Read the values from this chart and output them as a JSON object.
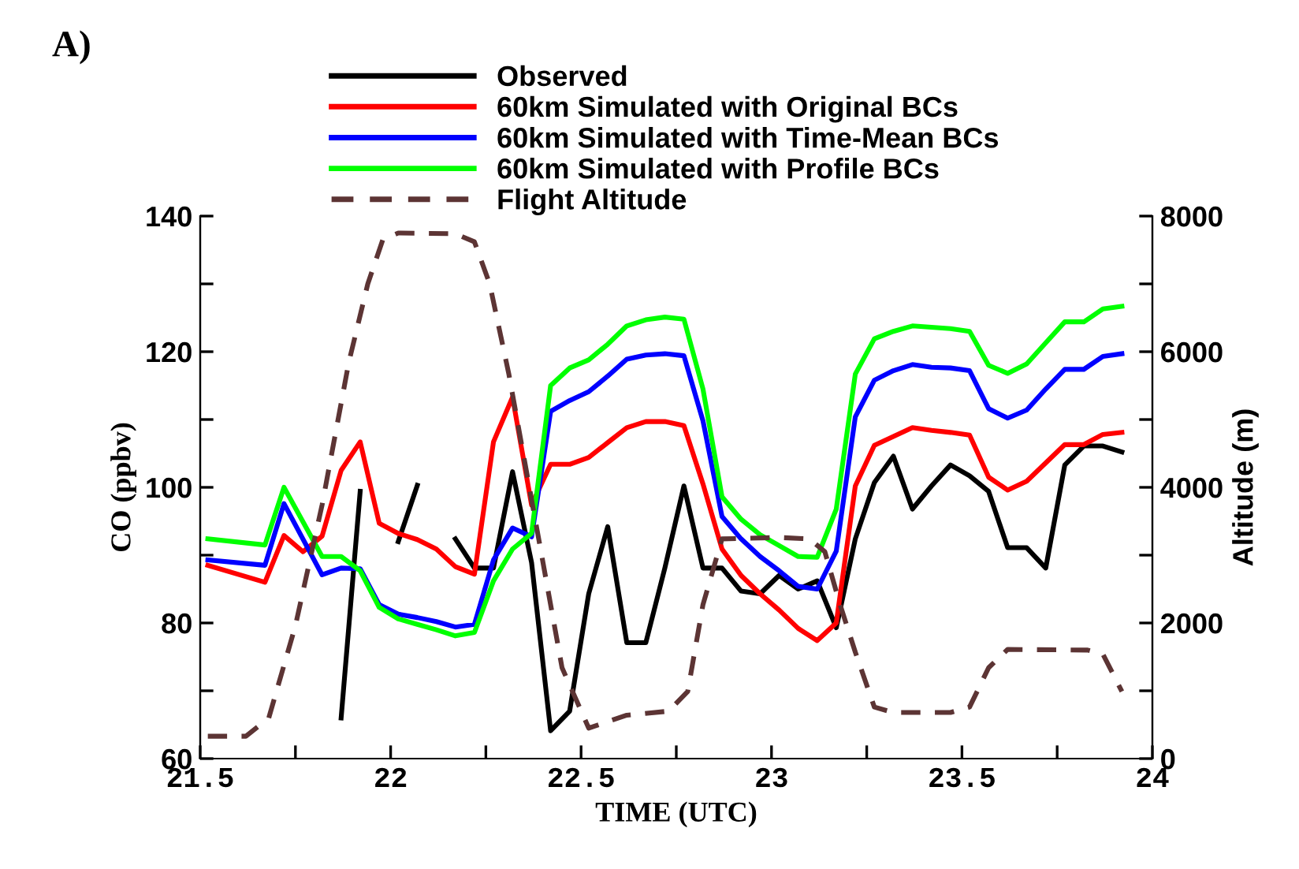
{
  "chart_data": {
    "type": "line",
    "xlabel": "TIME (UTC)",
    "ylabel": "CO (ppbv)",
    "y2label": "Altitude (m)",
    "annotations": [
      "A)"
    ],
    "xlim": [
      21.5,
      24
    ],
    "xticks": [
      21.5,
      {
        "value": 21.75,
        "label": null
      },
      22,
      {
        "value": 22.25,
        "label": null
      },
      22.5,
      {
        "value": 22.75,
        "label": null
      },
      23,
      {
        "value": 23.25,
        "label": null
      },
      23.5,
      {
        "value": 23.75,
        "label": null
      },
      24
    ],
    "ylim": [
      60,
      140
    ],
    "yticks": [
      60,
      {
        "value": 70,
        "label": null
      },
      80,
      {
        "value": 90,
        "label": null
      },
      100,
      {
        "value": 110,
        "label": null
      },
      120,
      {
        "value": 130,
        "label": null
      },
      140
    ],
    "y2lim": [
      0,
      8000
    ],
    "y2ticks": [
      0,
      {
        "value": 1000,
        "label": null
      },
      2000,
      {
        "value": 3000,
        "label": null
      },
      4000,
      {
        "value": 5000,
        "label": null
      },
      6000,
      {
        "value": 7000,
        "label": null
      },
      8000
    ],
    "legend": "top",
    "grid": false,
    "line_style": "solid",
    "series": [
      {
        "name": "Observed",
        "color": "#000000",
        "x": [
          21.87,
          21.92,
          21.97,
          22.02,
          22.07,
          22.12,
          22.17,
          22.22,
          22.27,
          22.32,
          22.37,
          22.42,
          22.47,
          22.52,
          22.57,
          22.62,
          22.67,
          22.72,
          22.77,
          22.82,
          22.87,
          22.92,
          22.97,
          23.02,
          23.07,
          23.12,
          23.17,
          23.22,
          23.27,
          23.32,
          23.37,
          23.42,
          23.47,
          23.52,
          23.57,
          23.62,
          23.67,
          23.72,
          23.77,
          23.82,
          23.87,
          23.92
        ],
        "values": [
          66.0,
          99.4,
          null,
          92.0,
          100.3,
          null,
          92.4,
          88.1,
          88.1,
          102.3,
          88.9,
          64.1,
          67.0,
          84.3,
          94.2,
          77.1,
          77.1,
          88.1,
          100.2,
          88.1,
          88.1,
          84.7,
          84.3,
          87.0,
          85.0,
          86.2,
          79.3,
          92.4,
          100.7,
          104.6,
          96.8,
          100.2,
          103.3,
          101.7,
          99.4,
          91.1,
          91.1,
          88.1,
          103.3,
          106.1,
          106.1,
          105.2
        ]
      },
      {
        "name": "60km Simulated with Original BCs",
        "color": "#ff0000",
        "x": [
          21.52,
          21.67,
          21.72,
          21.77,
          21.82,
          21.87,
          21.92,
          21.97,
          22.02,
          22.07,
          22.12,
          22.17,
          22.22,
          22.27,
          22.32,
          22.37,
          22.42,
          22.47,
          22.52,
          22.57,
          22.62,
          22.67,
          22.72,
          22.77,
          22.82,
          22.87,
          22.92,
          22.97,
          23.02,
          23.07,
          23.12,
          23.17,
          23.22,
          23.27,
          23.32,
          23.37,
          23.42,
          23.47,
          23.52,
          23.57,
          23.62,
          23.67,
          23.72,
          23.77,
          23.82,
          23.87,
          23.92
        ],
        "values": [
          88.5,
          86.0,
          92.9,
          90.5,
          92.8,
          102.5,
          106.7,
          94.7,
          93.2,
          92.3,
          90.9,
          88.3,
          87.2,
          106.7,
          113.3,
          97.4,
          103.4,
          103.4,
          104.4,
          106.6,
          108.8,
          109.7,
          109.7,
          109.1,
          100.5,
          90.9,
          87.0,
          84.3,
          81.9,
          79.2,
          77.4,
          80.0,
          100.2,
          106.2,
          107.5,
          108.8,
          108.4,
          108.1,
          107.7,
          101.5,
          99.6,
          100.9,
          103.6,
          106.3,
          106.3,
          107.8,
          108.1
        ]
      },
      {
        "name": "60km Simulated with Time-Mean BCs",
        "color": "#0000ff",
        "x": [
          21.52,
          21.67,
          21.72,
          21.82,
          21.87,
          21.92,
          21.97,
          22.02,
          22.07,
          22.12,
          22.17,
          22.22,
          22.27,
          22.32,
          22.37,
          22.42,
          22.47,
          22.52,
          22.57,
          22.62,
          22.67,
          22.72,
          22.77,
          22.82,
          22.87,
          22.92,
          22.97,
          23.02,
          23.07,
          23.12,
          23.17,
          23.22,
          23.27,
          23.32,
          23.37,
          23.42,
          23.47,
          23.52,
          23.57,
          23.62,
          23.67,
          23.72,
          23.77,
          23.82,
          23.87,
          23.92
        ],
        "values": [
          89.3,
          88.5,
          97.6,
          87.1,
          88.1,
          88.0,
          82.7,
          81.3,
          80.8,
          80.2,
          79.4,
          79.8,
          89.3,
          94.0,
          92.7,
          111.2,
          112.8,
          114.1,
          116.4,
          118.9,
          119.5,
          119.7,
          119.4,
          109.8,
          95.7,
          92.4,
          89.8,
          87.7,
          85.4,
          85.0,
          90.6,
          110.4,
          115.8,
          117.2,
          118.1,
          117.7,
          117.6,
          117.2,
          111.6,
          110.2,
          111.4,
          114.5,
          117.4,
          117.4,
          119.3,
          119.7
        ]
      },
      {
        "name": "60km Simulated with Profile BCs",
        "color": "#00ff00",
        "x": [
          21.52,
          21.67,
          21.72,
          21.82,
          21.87,
          21.92,
          21.97,
          22.02,
          22.07,
          22.12,
          22.17,
          22.22,
          22.27,
          22.32,
          22.37,
          22.42,
          22.47,
          22.52,
          22.57,
          22.62,
          22.67,
          22.72,
          22.77,
          22.82,
          22.87,
          22.92,
          22.97,
          23.02,
          23.07,
          23.12,
          23.17,
          23.22,
          23.27,
          23.32,
          23.37,
          23.42,
          23.47,
          23.52,
          23.57,
          23.62,
          23.67,
          23.72,
          23.77,
          23.82,
          23.87,
          23.92
        ],
        "values": [
          92.4,
          91.5,
          100.0,
          89.8,
          89.8,
          87.7,
          82.3,
          80.6,
          79.8,
          79.0,
          78.1,
          78.6,
          86.2,
          90.9,
          93.2,
          115.0,
          117.6,
          118.8,
          121.1,
          123.8,
          124.7,
          125.1,
          124.8,
          114.5,
          98.6,
          95.3,
          93.0,
          91.4,
          89.8,
          89.7,
          96.8,
          116.7,
          121.9,
          123.0,
          123.8,
          123.6,
          123.4,
          123.0,
          118.0,
          116.8,
          118.2,
          121.3,
          124.4,
          124.4,
          126.3,
          126.7
        ]
      },
      {
        "name": "Flight Altitude",
        "color": "#5c3434",
        "axis": "y2",
        "line_style": "dashed",
        "x": [
          21.52,
          21.62,
          21.68,
          21.75,
          21.82,
          21.89,
          21.94,
          21.98,
          22.02,
          22.17,
          22.22,
          22.26,
          22.31,
          22.38,
          22.45,
          22.52,
          22.62,
          22.73,
          22.78,
          22.82,
          22.87,
          23.02,
          23.1,
          23.14,
          23.18,
          23.22,
          23.27,
          23.32,
          23.47,
          23.52,
          23.57,
          23.62,
          23.83,
          23.87,
          23.92
        ],
        "values": [
          330,
          330,
          600,
          1960,
          3740,
          5840,
          7000,
          7660,
          7750,
          7740,
          7620,
          7000,
          5680,
          3510,
          1340,
          450,
          640,
          700,
          990,
          2270,
          3240,
          3260,
          3240,
          3050,
          2270,
          1570,
          760,
          680,
          680,
          760,
          1340,
          1610,
          1600,
          1540,
          990
        ]
      }
    ]
  }
}
